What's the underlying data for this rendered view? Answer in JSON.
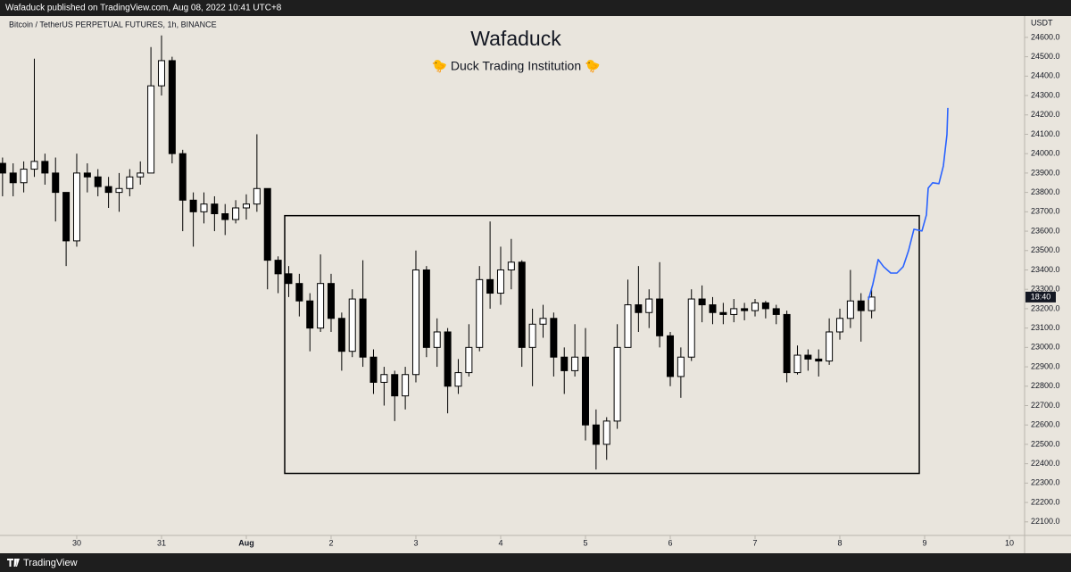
{
  "header": {
    "text": "Wafaduck published on TradingView.com, Aug 08, 2022 10:41 UTC+8"
  },
  "footer": {
    "brand": "TradingView"
  },
  "chart_data": {
    "type": "candlestick",
    "title": "Wafaduck",
    "subtitle": "🐤 Duck Trading Institution 🐤",
    "symbol": "Bitcoin / TetherUS PERPETUAL FUTURES, 1h, BINANCE",
    "currency": "USDT",
    "countdown": "18:40",
    "up_color": "#ffffff",
    "down_color": "#000000",
    "wick_color": "#000000",
    "grid": false,
    "xlim": [
      -0.905,
      11.179
    ],
    "ylim": [
      22030,
      24710
    ],
    "xticks": [
      {
        "value": 0,
        "label": "30"
      },
      {
        "value": 1,
        "label": "31"
      },
      {
        "value": 2,
        "label": "Aug"
      },
      {
        "value": 3,
        "label": "2"
      },
      {
        "value": 4,
        "label": "3"
      },
      {
        "value": 5,
        "label": "4"
      },
      {
        "value": 6,
        "label": "5"
      },
      {
        "value": 7,
        "label": "6"
      },
      {
        "value": 8,
        "label": "7"
      },
      {
        "value": 9,
        "label": "8"
      },
      {
        "value": 10,
        "label": "9"
      },
      {
        "value": 11,
        "label": "10"
      }
    ],
    "yticks": [
      {
        "value": 22100,
        "label": "22100.0"
      },
      {
        "value": 22200,
        "label": "22200.0"
      },
      {
        "value": 22300,
        "label": "22300.0"
      },
      {
        "value": 22400,
        "label": "22400.0"
      },
      {
        "value": 22500,
        "label": "22500.0"
      },
      {
        "value": 22600,
        "label": "22600.0"
      },
      {
        "value": 22700,
        "label": "22700.0"
      },
      {
        "value": 22800,
        "label": "22800.0"
      },
      {
        "value": 22900,
        "label": "22900.0"
      },
      {
        "value": 23000,
        "label": "23000.0"
      },
      {
        "value": 23100,
        "label": "23100.0"
      },
      {
        "value": 23200,
        "label": "23200.0"
      },
      {
        "value": 23300,
        "label": "23300.0"
      },
      {
        "value": 23400,
        "label": "23400.0"
      },
      {
        "value": 23500,
        "label": "23500.0"
      },
      {
        "value": 23600,
        "label": "23600.0"
      },
      {
        "value": 23700,
        "label": "23700.0"
      },
      {
        "value": 23800,
        "label": "23800.0"
      },
      {
        "value": 23900,
        "label": "23900.0"
      },
      {
        "value": 24000,
        "label": "24000.0"
      },
      {
        "value": 24100,
        "label": "24100.0"
      },
      {
        "value": 24200,
        "label": "24200.0"
      },
      {
        "value": 24300,
        "label": "24300.0"
      },
      {
        "value": 24400,
        "label": "24400.0"
      },
      {
        "value": 24500,
        "label": "24500.0"
      },
      {
        "value": 24600,
        "label": "24600.0"
      }
    ],
    "x": [
      -0.875,
      -0.75,
      -0.625,
      -0.5,
      -0.375,
      -0.25,
      -0.125,
      0,
      0.125,
      0.25,
      0.375,
      0.5,
      0.625,
      0.75,
      0.875,
      1,
      1.125,
      1.25,
      1.375,
      1.5,
      1.625,
      1.75,
      1.875,
      2,
      2.125,
      2.25,
      2.375,
      2.5,
      2.625,
      2.75,
      2.875,
      3,
      3.125,
      3.25,
      3.375,
      3.5,
      3.625,
      3.75,
      3.875,
      4,
      4.125,
      4.25,
      4.375,
      4.5,
      4.625,
      4.75,
      4.875,
      5,
      5.125,
      5.25,
      5.375,
      5.5,
      5.625,
      5.75,
      5.875,
      6,
      6.125,
      6.25,
      6.375,
      6.5,
      6.625,
      6.75,
      6.875,
      7,
      7.125,
      7.25,
      7.375,
      7.5,
      7.625,
      7.75,
      7.875,
      8,
      8.125,
      8.25,
      8.375,
      8.5,
      8.625,
      8.75,
      8.875,
      9,
      9.125,
      9.25,
      9.375
    ],
    "open": [
      23950,
      23900,
      23850,
      23920,
      23960,
      23900,
      23800,
      23550,
      23900,
      23880,
      23830,
      23800,
      23820,
      23880,
      23900,
      24350,
      24480,
      24000,
      23760,
      23700,
      23740,
      23690,
      23660,
      23720,
      23740,
      23820,
      23450,
      23380,
      23330,
      23240,
      23100,
      23330,
      23150,
      22980,
      23250,
      22950,
      22820,
      22860,
      22750,
      22860,
      23400,
      23000,
      23080,
      22800,
      22870,
      23000,
      23350,
      23280,
      23400,
      23440,
      23000,
      23120,
      23150,
      22950,
      22880,
      22950,
      22600,
      22500,
      22620,
      23000,
      23220,
      23180,
      23250,
      23060,
      22850,
      22950,
      23250,
      23220,
      23180,
      23170,
      23200,
      23190,
      23230,
      23200,
      23170,
      22870,
      22960,
      22940,
      22930,
      23080,
      23150,
      23240,
      23190
    ],
    "high": [
      23980,
      23950,
      23960,
      24490,
      24000,
      23980,
      23800,
      24000,
      23950,
      23920,
      23880,
      23900,
      23920,
      23960,
      24550,
      24610,
      24500,
      24020,
      23800,
      23800,
      23780,
      23740,
      23760,
      23790,
      24100,
      23820,
      23470,
      23420,
      23380,
      23280,
      23480,
      23380,
      23180,
      23300,
      23450,
      22990,
      22900,
      22880,
      22900,
      23500,
      23420,
      23150,
      23100,
      22940,
      23120,
      23420,
      23650,
      23520,
      23560,
      23450,
      23200,
      23220,
      23180,
      23000,
      23120,
      23100,
      22680,
      22640,
      23120,
      23350,
      23420,
      23300,
      23440,
      23080,
      23000,
      23300,
      23320,
      23260,
      23230,
      23250,
      23230,
      23250,
      23240,
      23220,
      23190,
      23010,
      22990,
      22990,
      23150,
      23200,
      23400,
      23280,
      23300
    ],
    "low": [
      23780,
      23780,
      23800,
      23880,
      23840,
      23650,
      23420,
      23520,
      23800,
      23780,
      23720,
      23700,
      23780,
      23840,
      23900,
      24300,
      23950,
      23600,
      23520,
      23640,
      23600,
      23580,
      23640,
      23660,
      23700,
      23300,
      23280,
      23260,
      23160,
      22980,
      23080,
      23080,
      22880,
      22950,
      22900,
      22760,
      22700,
      22620,
      22680,
      22820,
      22950,
      22900,
      22660,
      22760,
      22850,
      22980,
      23200,
      23220,
      23300,
      22900,
      22800,
      23050,
      22850,
      22760,
      22850,
      22520,
      22370,
      22420,
      22580,
      23000,
      23080,
      23100,
      23000,
      22800,
      22740,
      22930,
      23130,
      23120,
      23120,
      23130,
      23140,
      23160,
      23150,
      23120,
      22820,
      22860,
      22880,
      22850,
      22910,
      23040,
      23100,
      23030,
      23150
    ],
    "close": [
      23900,
      23850,
      23920,
      23960,
      23900,
      23800,
      23550,
      23900,
      23880,
      23830,
      23800,
      23820,
      23880,
      23900,
      24350,
      24480,
      24000,
      23760,
      23700,
      23740,
      23690,
      23660,
      23720,
      23740,
      23820,
      23450,
      23380,
      23330,
      23240,
      23100,
      23330,
      23150,
      22980,
      23250,
      22950,
      22820,
      22860,
      22750,
      22860,
      23400,
      23000,
      23080,
      22800,
      22870,
      23000,
      23350,
      23280,
      23400,
      23440,
      23000,
      23120,
      23150,
      22950,
      22880,
      22950,
      22600,
      22500,
      22620,
      23000,
      23220,
      23180,
      23250,
      23060,
      22850,
      22950,
      23250,
      23220,
      23180,
      23170,
      23200,
      23190,
      23230,
      23200,
      23170,
      22870,
      22960,
      22940,
      22930,
      23080,
      23150,
      23240,
      23190,
      23260
    ],
    "box": {
      "color": "#000000",
      "x": [
        2.453,
        9.937
      ],
      "y": [
        22350,
        23680
      ]
    },
    "drawing": {
      "color": "#2962ff",
      "x": [
        9.337,
        9.389,
        9.453,
        9.516,
        9.6,
        9.674,
        9.747,
        9.811,
        9.874,
        9.968,
        10.021,
        10.042,
        10.095,
        10.168,
        10.221,
        10.263,
        10.274
      ],
      "y": [
        23246,
        23325,
        23454,
        23417,
        23384,
        23384,
        23417,
        23500,
        23610,
        23601,
        23684,
        23822,
        23850,
        23845,
        23937,
        24098,
        24236
      ]
    }
  }
}
